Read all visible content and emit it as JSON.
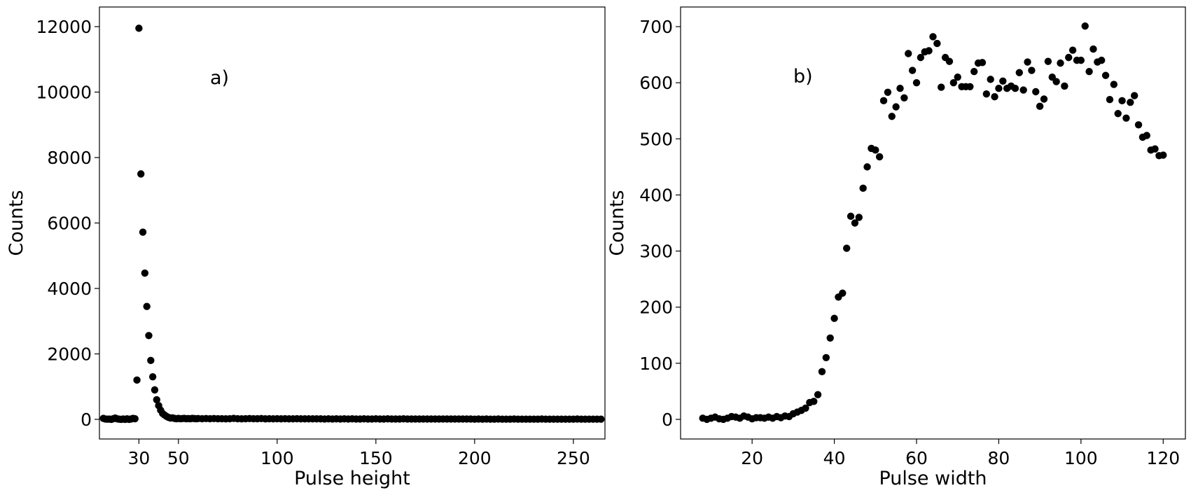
{
  "chart_data": [
    {
      "type": "scatter",
      "annotation": "a)",
      "xlabel": "Pulse height",
      "ylabel": "Counts",
      "xlim": [
        10,
        266
      ],
      "ylim": [
        -600,
        12600
      ],
      "xticks": [
        30,
        50,
        100,
        150,
        200,
        250
      ],
      "yticks": [
        0,
        2000,
        4000,
        6000,
        8000,
        10000,
        12000
      ],
      "grid": false,
      "marker_color": "#000000",
      "series": [
        {
          "points": [
            [
              12,
              30
            ],
            [
              13,
              10
            ],
            [
              14,
              5
            ],
            [
              15,
              8
            ],
            [
              16,
              0
            ],
            [
              17,
              20
            ],
            [
              18,
              40
            ],
            [
              19,
              15
            ],
            [
              20,
              5
            ],
            [
              21,
              0
            ],
            [
              22,
              10
            ],
            [
              23,
              0
            ],
            [
              24,
              15
            ],
            [
              25,
              0
            ],
            [
              26,
              10
            ],
            [
              27,
              30
            ],
            [
              28,
              20
            ],
            [
              29,
              1200
            ],
            [
              30,
              11950
            ],
            [
              31,
              7500
            ],
            [
              32,
              5720
            ],
            [
              33,
              4470
            ],
            [
              34,
              3450
            ],
            [
              35,
              2560
            ],
            [
              36,
              1800
            ],
            [
              37,
              1300
            ],
            [
              38,
              900
            ],
            [
              39,
              600
            ],
            [
              40,
              420
            ],
            [
              41,
              280
            ],
            [
              42,
              180
            ],
            [
              43,
              130
            ],
            [
              44,
              90
            ],
            [
              45,
              60
            ],
            [
              46,
              40
            ],
            [
              47,
              45
            ],
            [
              48,
              30
            ],
            [
              49,
              20
            ],
            [
              50,
              30
            ],
            [
              51,
              20
            ],
            [
              52,
              25
            ],
            [
              53,
              30
            ],
            [
              54,
              20
            ],
            [
              55,
              25
            ],
            [
              56,
              20
            ],
            [
              57,
              30
            ],
            [
              58,
              25
            ],
            [
              59,
              20
            ],
            [
              60,
              25
            ],
            [
              62,
              20
            ],
            [
              64,
              25
            ],
            [
              66,
              20
            ],
            [
              68,
              25
            ],
            [
              70,
              20
            ],
            [
              72,
              20
            ],
            [
              74,
              15
            ],
            [
              76,
              20
            ],
            [
              78,
              30
            ],
            [
              80,
              20
            ],
            [
              82,
              15
            ],
            [
              84,
              20
            ],
            [
              86,
              25
            ],
            [
              88,
              20
            ],
            [
              90,
              20
            ],
            [
              92,
              25
            ],
            [
              94,
              15
            ],
            [
              96,
              20
            ],
            [
              98,
              15
            ],
            [
              100,
              20
            ],
            [
              102,
              15
            ],
            [
              104,
              20
            ],
            [
              106,
              15
            ],
            [
              108,
              15
            ],
            [
              110,
              20
            ],
            [
              112,
              15
            ],
            [
              114,
              15
            ],
            [
              116,
              15
            ],
            [
              118,
              15
            ],
            [
              120,
              15
            ],
            [
              122,
              15
            ],
            [
              124,
              10
            ],
            [
              126,
              15
            ],
            [
              128,
              10
            ],
            [
              130,
              15
            ],
            [
              132,
              10
            ],
            [
              134,
              15
            ],
            [
              136,
              10
            ],
            [
              138,
              15
            ],
            [
              140,
              10
            ],
            [
              142,
              10
            ],
            [
              144,
              15
            ],
            [
              146,
              10
            ],
            [
              148,
              10
            ],
            [
              150,
              15
            ],
            [
              152,
              10
            ],
            [
              154,
              10
            ],
            [
              156,
              15
            ],
            [
              158,
              10
            ],
            [
              160,
              10
            ],
            [
              162,
              10
            ],
            [
              164,
              15
            ],
            [
              166,
              10
            ],
            [
              168,
              10
            ],
            [
              170,
              10
            ],
            [
              172,
              10
            ],
            [
              174,
              10
            ],
            [
              176,
              10
            ],
            [
              178,
              10
            ],
            [
              180,
              10
            ],
            [
              182,
              10
            ],
            [
              184,
              10
            ],
            [
              186,
              10
            ],
            [
              188,
              10
            ],
            [
              190,
              10
            ],
            [
              192,
              10
            ],
            [
              194,
              10
            ],
            [
              196,
              10
            ],
            [
              198,
              10
            ],
            [
              200,
              5
            ],
            [
              202,
              10
            ],
            [
              204,
              5
            ],
            [
              206,
              10
            ],
            [
              208,
              5
            ],
            [
              210,
              5
            ],
            [
              212,
              10
            ],
            [
              214,
              5
            ],
            [
              216,
              5
            ],
            [
              218,
              5
            ],
            [
              220,
              10
            ],
            [
              222,
              5
            ],
            [
              224,
              5
            ],
            [
              226,
              5
            ],
            [
              228,
              5
            ],
            [
              230,
              5
            ],
            [
              232,
              5
            ],
            [
              234,
              10
            ],
            [
              236,
              5
            ],
            [
              238,
              5
            ],
            [
              240,
              5
            ],
            [
              242,
              5
            ],
            [
              244,
              5
            ],
            [
              246,
              5
            ],
            [
              248,
              5
            ],
            [
              250,
              5
            ],
            [
              252,
              10
            ],
            [
              254,
              5
            ],
            [
              256,
              5
            ],
            [
              258,
              5
            ],
            [
              260,
              5
            ],
            [
              262,
              5
            ],
            [
              264,
              5
            ]
          ]
        }
      ]
    },
    {
      "type": "scatter",
      "annotation": "b)",
      "xlabel": "Pulse width",
      "ylabel": "Counts",
      "xlim": [
        2.6,
        125.4
      ],
      "ylim": [
        -35,
        735
      ],
      "xticks": [
        20,
        40,
        60,
        80,
        100,
        120
      ],
      "yticks": [
        0,
        100,
        200,
        300,
        400,
        500,
        600,
        700
      ],
      "grid": false,
      "marker_color": "#000000",
      "series": [
        {
          "points": [
            [
              8,
              2
            ],
            [
              9,
              0
            ],
            [
              10,
              2
            ],
            [
              11,
              4
            ],
            [
              12,
              1
            ],
            [
              13,
              0
            ],
            [
              14,
              2
            ],
            [
              15,
              5
            ],
            [
              16,
              4
            ],
            [
              17,
              2
            ],
            [
              18,
              6
            ],
            [
              19,
              4
            ],
            [
              20,
              1
            ],
            [
              21,
              3
            ],
            [
              22,
              3
            ],
            [
              23,
              2
            ],
            [
              24,
              4
            ],
            [
              25,
              2
            ],
            [
              26,
              5
            ],
            [
              27,
              3
            ],
            [
              28,
              6
            ],
            [
              29,
              5
            ],
            [
              30,
              10
            ],
            [
              31,
              13
            ],
            [
              32,
              16
            ],
            [
              33,
              20
            ],
            [
              34,
              30
            ],
            [
              35,
              32
            ],
            [
              36,
              44
            ],
            [
              37,
              85
            ],
            [
              38,
              110
            ],
            [
              39,
              145
            ],
            [
              40,
              180
            ],
            [
              41,
              218
            ],
            [
              42,
              225
            ],
            [
              43,
              305
            ],
            [
              44,
              362
            ],
            [
              45,
              350
            ],
            [
              46,
              360
            ],
            [
              47,
              412
            ],
            [
              48,
              450
            ],
            [
              49,
              483
            ],
            [
              50,
              480
            ],
            [
              51,
              468
            ],
            [
              52,
              568
            ],
            [
              53,
              583
            ],
            [
              54,
              540
            ],
            [
              55,
              557
            ],
            [
              56,
              590
            ],
            [
              57,
              573
            ],
            [
              58,
              652
            ],
            [
              59,
              622
            ],
            [
              60,
              600
            ],
            [
              61,
              645
            ],
            [
              62,
              655
            ],
            [
              63,
              657
            ],
            [
              64,
              682
            ],
            [
              65,
              670
            ],
            [
              66,
              592
            ],
            [
              67,
              645
            ],
            [
              68,
              638
            ],
            [
              69,
              600
            ],
            [
              70,
              610
            ],
            [
              71,
              593
            ],
            [
              72,
              593
            ],
            [
              73,
              593
            ],
            [
              74,
              620
            ],
            [
              75,
              635
            ],
            [
              76,
              636
            ],
            [
              77,
              580
            ],
            [
              78,
              606
            ],
            [
              79,
              575
            ],
            [
              80,
              590
            ],
            [
              81,
              603
            ],
            [
              82,
              590
            ],
            [
              83,
              594
            ],
            [
              84,
              590
            ],
            [
              85,
              618
            ],
            [
              86,
              587
            ],
            [
              87,
              637
            ],
            [
              88,
              622
            ],
            [
              89,
              584
            ],
            [
              90,
              558
            ],
            [
              91,
              571
            ],
            [
              92,
              638
            ],
            [
              93,
              610
            ],
            [
              94,
              602
            ],
            [
              95,
              635
            ],
            [
              96,
              594
            ],
            [
              97,
              645
            ],
            [
              98,
              658
            ],
            [
              99,
              640
            ],
            [
              100,
              640
            ],
            [
              101,
              701
            ],
            [
              102,
              620
            ],
            [
              103,
              660
            ],
            [
              104,
              637
            ],
            [
              105,
              640
            ],
            [
              106,
              613
            ],
            [
              107,
              570
            ],
            [
              108,
              597
            ],
            [
              109,
              545
            ],
            [
              110,
              568
            ],
            [
              111,
              537
            ],
            [
              112,
              565
            ],
            [
              113,
              577
            ],
            [
              114,
              525
            ],
            [
              115,
              503
            ],
            [
              116,
              506
            ],
            [
              117,
              480
            ],
            [
              118,
              482
            ],
            [
              119,
              470
            ],
            [
              120,
              471
            ]
          ]
        }
      ]
    }
  ]
}
